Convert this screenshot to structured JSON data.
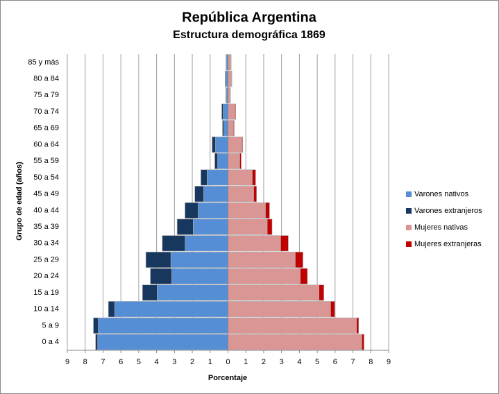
{
  "chart_data": {
    "type": "pyramid",
    "title": "República Argentina",
    "subtitle": "Estructura demográfica 1869",
    "x_label": "Porcentaje",
    "y_label": "Grupo de edad (años)",
    "categories": [
      "0 a 4",
      "5 a 9",
      "10 a 14",
      "15 a 19",
      "20 a 24",
      "25 a 29",
      "30 a 34",
      "35 a 39",
      "40 a 44",
      "45 a 49",
      "50 a 54",
      "55 a 59",
      "60 a 64",
      "65 a 69",
      "70 a 74",
      "75 a 79",
      "80 a 84",
      "85 y más"
    ],
    "series": [
      {
        "name": "Varones nativos",
        "color": "#558ed5",
        "values": [
          -7.3,
          -7.27,
          -6.35,
          -3.97,
          -3.15,
          -3.2,
          -2.4,
          -1.95,
          -1.67,
          -1.36,
          -1.17,
          -0.58,
          -0.7,
          -0.23,
          -0.27,
          -0.08,
          -0.12,
          -0.1
        ]
      },
      {
        "name": "Varones extranjeros",
        "color": "#17375e",
        "values": [
          -0.12,
          -0.27,
          -0.35,
          -0.82,
          -1.2,
          -1.4,
          -1.28,
          -0.9,
          -0.74,
          -0.5,
          -0.35,
          -0.16,
          -0.19,
          -0.08,
          -0.08,
          -0.04,
          -0.04,
          -0.02
        ]
      },
      {
        "name": "Mujeres nativas",
        "color": "#d99694",
        "values": [
          7.5,
          7.2,
          5.75,
          5.1,
          4.05,
          3.77,
          2.95,
          2.2,
          2.1,
          1.44,
          1.36,
          0.66,
          0.78,
          0.31,
          0.39,
          0.12,
          0.2,
          0.16
        ]
      },
      {
        "name": "Mujeres extranjeras",
        "color": "#c00000",
        "values": [
          0.12,
          0.12,
          0.23,
          0.27,
          0.4,
          0.43,
          0.43,
          0.27,
          0.23,
          0.16,
          0.19,
          0.08,
          0.04,
          0.04,
          0.04,
          0.02,
          0.02,
          0.02
        ]
      }
    ],
    "xlim": [
      -9,
      9
    ],
    "xticks": [
      {
        "value": -9,
        "label": "9"
      },
      {
        "value": -8,
        "label": "8"
      },
      {
        "value": -7,
        "label": "7"
      },
      {
        "value": -6,
        "label": "6"
      },
      {
        "value": -5,
        "label": "5"
      },
      {
        "value": -4,
        "label": "4"
      },
      {
        "value": -3,
        "label": "3"
      },
      {
        "value": -2,
        "label": "2"
      },
      {
        "value": -1,
        "label": "1"
      },
      0,
      1,
      2,
      3,
      4,
      5,
      6,
      7,
      8,
      9
    ],
    "grid": true,
    "legend": "right"
  }
}
